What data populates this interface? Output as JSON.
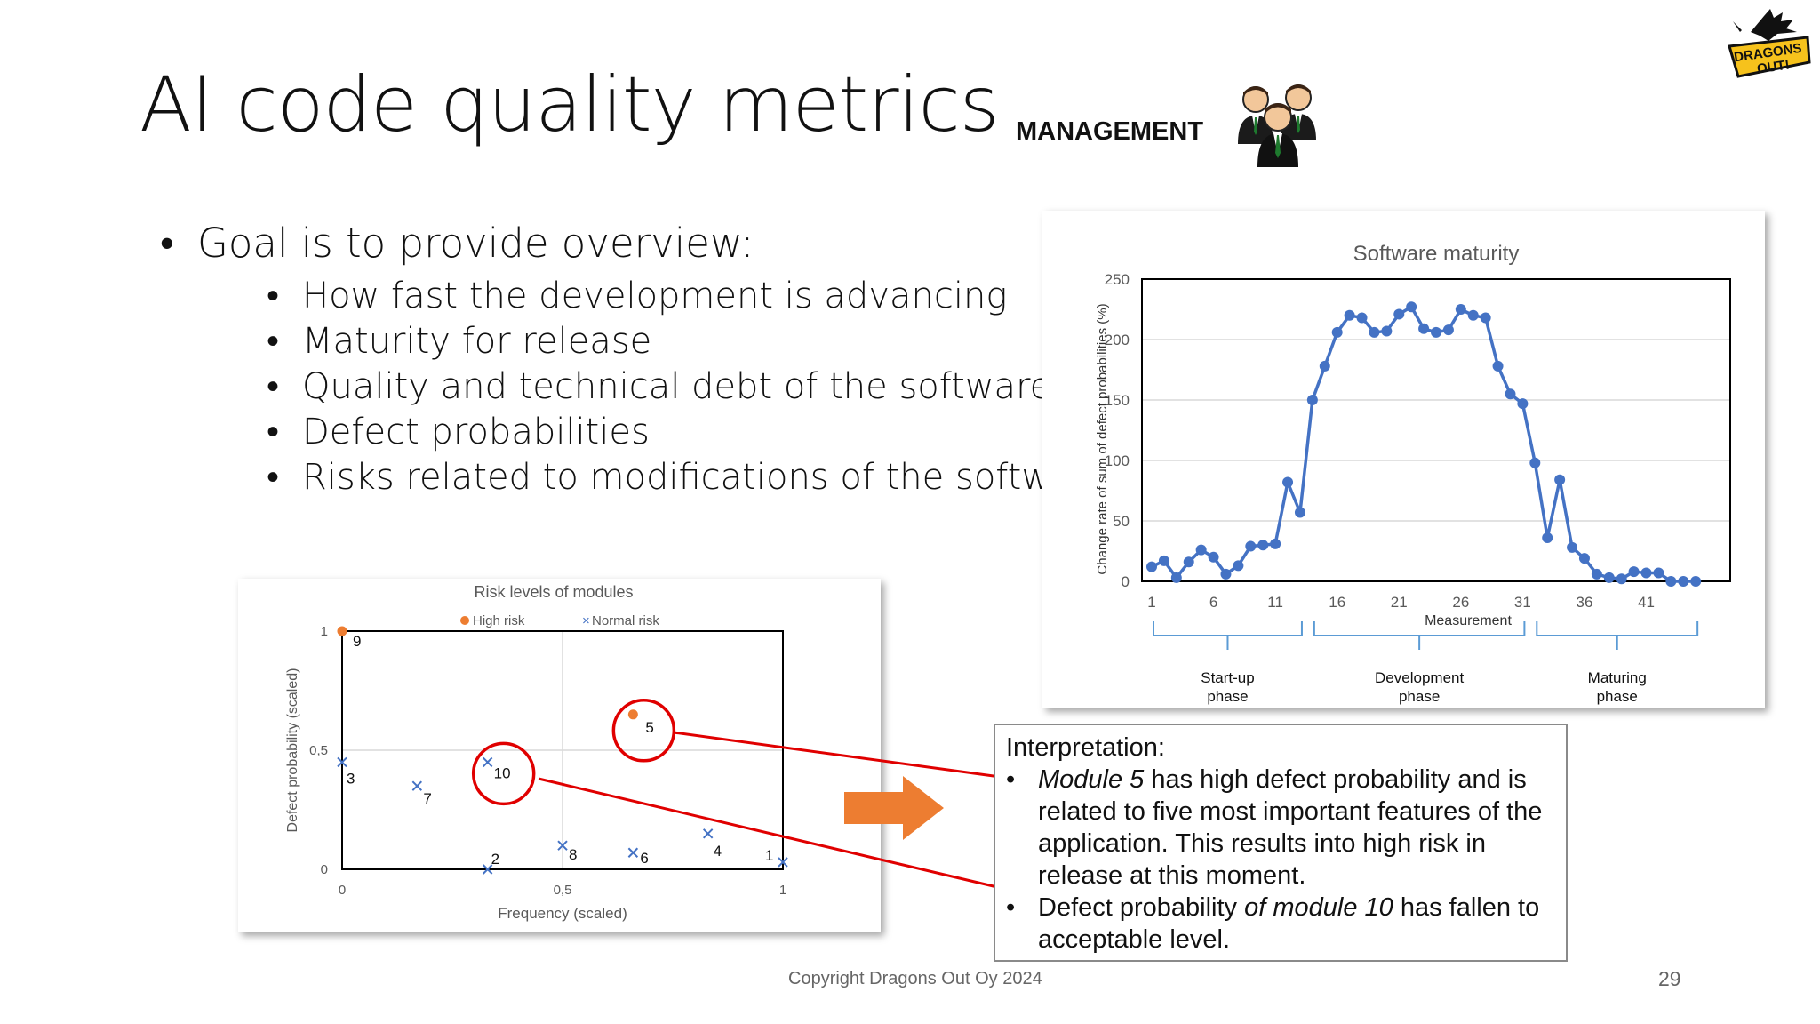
{
  "slide": {
    "title": "AI code quality metrics",
    "management_label": "MANAGEMENT",
    "logo_text": "DRAGONS OUT!",
    "copyright": "Copyright Dragons Out Oy 2024",
    "page_number": "29"
  },
  "bullets": {
    "main": "Goal is to provide overview:",
    "sub": [
      "How fast the development is advancing",
      "Maturity for release",
      "Quality and technical debt of the software",
      "Defect probabilities",
      "Risks related to modifications of the software."
    ]
  },
  "interpretation": {
    "title": "Interpretation:",
    "item1_em": "Module 5",
    "item1_rest": " has high defect probability and is related to five most important features of the application. This results into high risk in release at this moment.",
    "item2_a": "Defect probability ",
    "item2_em": "of module 10",
    "item2_b": " has fallen to acceptable level."
  },
  "colors": {
    "line_series": "#4472C4",
    "high_risk": "#ED7D31",
    "normal_risk": "#4472C4",
    "highlight_circle": "#E00000",
    "arrow": "#ED7D31",
    "brace": "#5B9BD5"
  },
  "chart_data": [
    {
      "type": "line",
      "title": "Software maturity",
      "xlabel": "Measurement",
      "ylabel": "Change rate of sum of defect probabilities (%)",
      "x_ticks": [
        "1",
        "6",
        "11",
        "16",
        "21",
        "26",
        "31",
        "36",
        "41"
      ],
      "y_ticks": [
        "0",
        "50",
        "100",
        "150",
        "200",
        "250"
      ],
      "ylim": [
        0,
        250
      ],
      "xlim": [
        1,
        47
      ],
      "grid": true,
      "series": [
        {
          "values": [
            12,
            17,
            3,
            16,
            26,
            20,
            6,
            13,
            29,
            30,
            31,
            82,
            57,
            150,
            178,
            206,
            220,
            218,
            206,
            207,
            221,
            227,
            209,
            206,
            208,
            225,
            220,
            218,
            178,
            155,
            147,
            98,
            36,
            84,
            28,
            19,
            6,
            3,
            2,
            8,
            7,
            7,
            0,
            0,
            0
          ]
        }
      ],
      "phases": [
        {
          "label_line1": "Start-up",
          "label_line2": "phase"
        },
        {
          "label_line1": "Development",
          "label_line2": "phase"
        },
        {
          "label_line1": "Maturing",
          "label_line2": "phase"
        }
      ]
    },
    {
      "type": "scatter",
      "title": "Risk levels of modules",
      "xlabel": "Frequency (scaled)",
      "ylabel": "Defect probability (scaled)",
      "x_ticks": [
        "0",
        "0,5",
        "1"
      ],
      "y_ticks": [
        "0",
        "0,5",
        "1"
      ],
      "xlim": [
        0,
        1
      ],
      "ylim": [
        0,
        1
      ],
      "legend": [
        "High risk",
        "Normal risk"
      ],
      "legend_position": "top",
      "series": [
        {
          "name": "High risk",
          "points": [
            {
              "label": "9",
              "x": 0.0,
              "y": 1.0
            },
            {
              "label": "5",
              "x": 0.66,
              "y": 0.65
            }
          ]
        },
        {
          "name": "Normal risk",
          "points": [
            {
              "label": "3",
              "x": 0.0,
              "y": 0.45
            },
            {
              "label": "7",
              "x": 0.17,
              "y": 0.35
            },
            {
              "label": "10",
              "x": 0.33,
              "y": 0.45
            },
            {
              "label": "2",
              "x": 0.33,
              "y": 0.0
            },
            {
              "label": "8",
              "x": 0.5,
              "y": 0.1
            },
            {
              "label": "6",
              "x": 0.66,
              "y": 0.07
            },
            {
              "label": "4",
              "x": 0.83,
              "y": 0.15
            },
            {
              "label": "1",
              "x": 1.0,
              "y": 0.03
            }
          ]
        }
      ],
      "highlighted": [
        "5",
        "10"
      ]
    }
  ]
}
